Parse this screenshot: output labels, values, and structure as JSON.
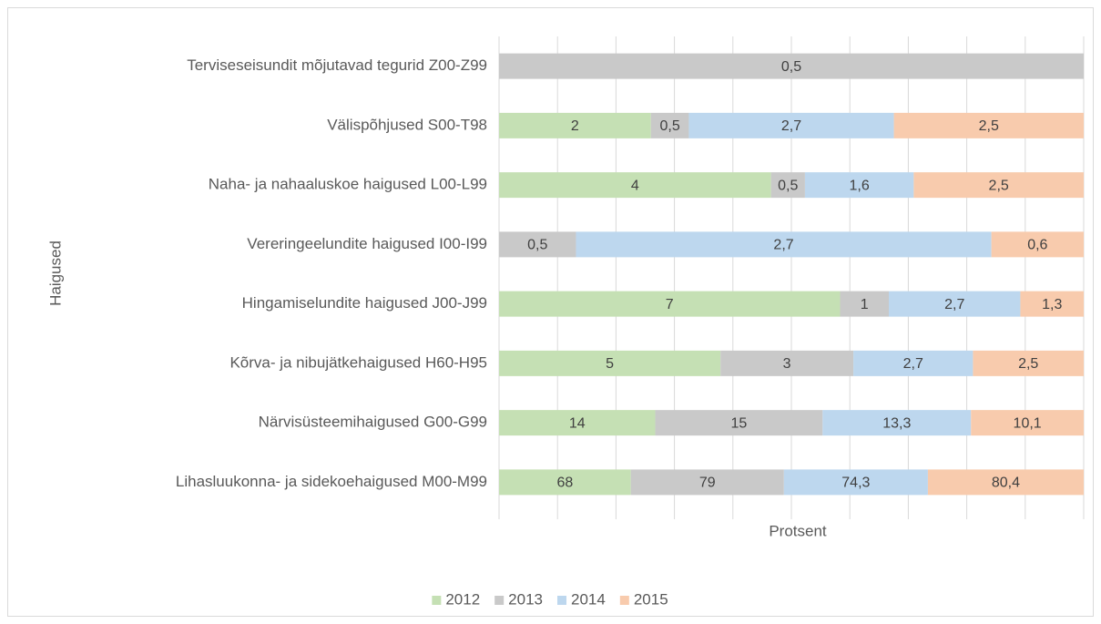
{
  "chart_data": {
    "type": "bar",
    "orientation": "horizontal",
    "stacking": "percent",
    "x_axis_label": "Protsent",
    "y_axis_label": "Haigused",
    "categories": [
      "Terviseseisundit mõjutavad tegurid Z00-Z99",
      "Välispõhjused S00-T98",
      "Naha- ja nahaaluskoe haigused L00-L99",
      "Vereringeelundite haigused I00-I99",
      "Hingamiselundite haigused J00-J99",
      "Kõrva- ja nibujätkehaigused H60-H95",
      "Närvisüsteemihaigused G00-G99",
      "Lihasluukonna- ja sidekoehaigused M00-M99"
    ],
    "series": [
      {
        "name": "2012",
        "color": "#c5e0b4",
        "values": [
          null,
          2,
          4,
          null,
          7,
          5,
          14,
          68
        ],
        "value_labels": [
          null,
          "2",
          "4",
          null,
          "7",
          "5",
          "14",
          "68"
        ]
      },
      {
        "name": "2013",
        "color": "#c9c9c9",
        "values": [
          0.5,
          0.5,
          0.5,
          0.5,
          1,
          3,
          15,
          79
        ],
        "value_labels": [
          "0,5",
          "0,5",
          "0,5",
          "0,5",
          "1",
          "3",
          "15",
          "79"
        ]
      },
      {
        "name": "2014",
        "color": "#bdd7ee",
        "values": [
          null,
          2.7,
          1.6,
          2.7,
          2.7,
          2.7,
          13.3,
          74.3
        ],
        "value_labels": [
          null,
          "2,7",
          "1,6",
          "2,7",
          "2,7",
          "2,7",
          "13,3",
          "74,3"
        ]
      },
      {
        "name": "2015",
        "color": "#f8cbad",
        "values": [
          null,
          2.5,
          2.5,
          0.6,
          1.3,
          2.5,
          10.1,
          80.4
        ],
        "value_labels": [
          null,
          "2,5",
          "2,5",
          "0,6",
          "1,3",
          "2,5",
          "10,1",
          "80,4"
        ]
      }
    ],
    "xlim": [
      0,
      100
    ],
    "xticks": [
      0,
      10,
      20,
      30,
      40,
      50,
      60,
      70,
      80,
      90,
      100
    ],
    "grid": true,
    "legend": "bottom"
  }
}
